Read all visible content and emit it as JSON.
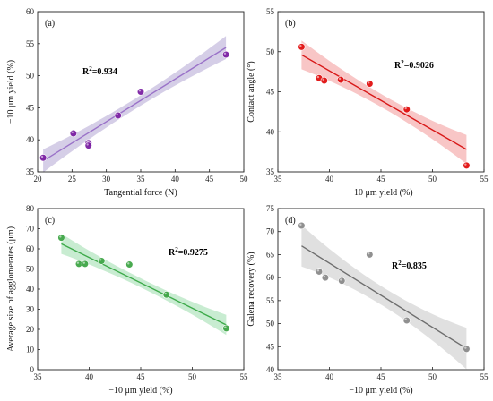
{
  "chart_data": [
    {
      "type": "scatter",
      "panel_label": "(a)",
      "xlabel": "Tangential force (N)",
      "ylabel": "−10 μm yield (%)",
      "xlim": [
        20,
        50
      ],
      "ylim": [
        35,
        60
      ],
      "xticks": [
        "20",
        "25",
        "30",
        "35",
        "40",
        "45",
        "50"
      ],
      "yticks": [
        "35",
        "40",
        "45",
        "50",
        "55",
        "60"
      ],
      "annotation": {
        "text": "R",
        "sup": "2",
        "rest": "=0.934"
      },
      "points": [
        {
          "x": 20.8,
          "y": 37.2
        },
        {
          "x": 25.2,
          "y": 41.0
        },
        {
          "x": 27.4,
          "y": 39.5
        },
        {
          "x": 27.4,
          "y": 39.1
        },
        {
          "x": 31.7,
          "y": 43.8
        },
        {
          "x": 35.0,
          "y": 47.5
        },
        {
          "x": 47.4,
          "y": 53.3
        }
      ],
      "fit": {
        "x": [
          20.8,
          47.4
        ],
        "y": [
          36.7,
          54.4
        ]
      },
      "band_halfwidth": 1.8,
      "marker_color": "#7a1fa2",
      "line_color": "#9a72c8",
      "band_color": "#c7bedf",
      "grid": false
    },
    {
      "type": "scatter",
      "panel_label": "(b)",
      "xlabel": "−10 μm yield (%)",
      "ylabel": "Contact angle (°)",
      "xlim": [
        35,
        55
      ],
      "ylim": [
        35,
        55
      ],
      "xticks": [
        "35",
        "40",
        "45",
        "50",
        "55"
      ],
      "yticks": [
        "35",
        "40",
        "45",
        "50",
        "55"
      ],
      "annotation": {
        "text": "R",
        "sup": "2",
        "rest": "=0.9026"
      },
      "points": [
        {
          "x": 37.3,
          "y": 50.6
        },
        {
          "x": 39.0,
          "y": 46.7
        },
        {
          "x": 39.5,
          "y": 46.4
        },
        {
          "x": 41.1,
          "y": 46.5
        },
        {
          "x": 43.9,
          "y": 46.0
        },
        {
          "x": 47.5,
          "y": 42.8
        },
        {
          "x": 53.3,
          "y": 35.8
        }
      ],
      "fit": {
        "x": [
          37.3,
          53.3
        ],
        "y": [
          49.6,
          37.8
        ]
      },
      "band_halfwidth": 1.8,
      "marker_color": "#e01010",
      "line_color": "#d81818",
      "band_color": "#f6b3b3",
      "grid": false
    },
    {
      "type": "scatter",
      "panel_label": "(c)",
      "xlabel": "−10 μm yield (%)",
      "ylabel": "Average size of agglomerates (μm)",
      "xlim": [
        35,
        55
      ],
      "ylim": [
        0,
        80
      ],
      "xticks": [
        "35",
        "40",
        "45",
        "50",
        "55"
      ],
      "yticks": [
        "0",
        "10",
        "20",
        "30",
        "40",
        "50",
        "60",
        "70",
        "80"
      ],
      "annotation": {
        "text": "R",
        "sup": "2",
        "rest": "=0.9275"
      },
      "points": [
        {
          "x": 37.3,
          "y": 65.5
        },
        {
          "x": 39.0,
          "y": 52.5
        },
        {
          "x": 39.6,
          "y": 52.5
        },
        {
          "x": 41.2,
          "y": 54.0
        },
        {
          "x": 43.9,
          "y": 52.2
        },
        {
          "x": 47.5,
          "y": 37.2
        },
        {
          "x": 53.3,
          "y": 20.5
        }
      ],
      "fit": {
        "x": [
          37.3,
          53.3
        ],
        "y": [
          62.5,
          22.2
        ]
      },
      "band_halfwidth": 5.0,
      "marker_color": "#3fa547",
      "line_color": "#3daa4a",
      "band_color": "#b6e6c2",
      "grid": false
    },
    {
      "type": "scatter",
      "panel_label": "(d)",
      "xlabel": "−10 μm yield (%)",
      "ylabel": "Galena recovery (%)",
      "xlim": [
        35,
        55
      ],
      "ylim": [
        40,
        75
      ],
      "xticks": [
        "35",
        "40",
        "45",
        "50",
        "55"
      ],
      "yticks": [
        "40",
        "45",
        "50",
        "55",
        "60",
        "65",
        "70",
        "75"
      ],
      "annotation": {
        "text": "R",
        "sup": "2",
        "rest": "=0.835"
      },
      "points": [
        {
          "x": 37.3,
          "y": 71.3
        },
        {
          "x": 39.0,
          "y": 61.3
        },
        {
          "x": 39.6,
          "y": 60.0
        },
        {
          "x": 41.2,
          "y": 59.3
        },
        {
          "x": 43.9,
          "y": 65.0
        },
        {
          "x": 47.5,
          "y": 50.7
        },
        {
          "x": 53.3,
          "y": 44.5
        }
      ],
      "fit": {
        "x": [
          37.3,
          53.3
        ],
        "y": [
          66.9,
          44.6
        ]
      },
      "band_halfwidth": 4.5,
      "marker_color": "#8a8a8a",
      "line_color": "#6e6e6e",
      "band_color": "#d6d6d6",
      "grid": false
    }
  ]
}
